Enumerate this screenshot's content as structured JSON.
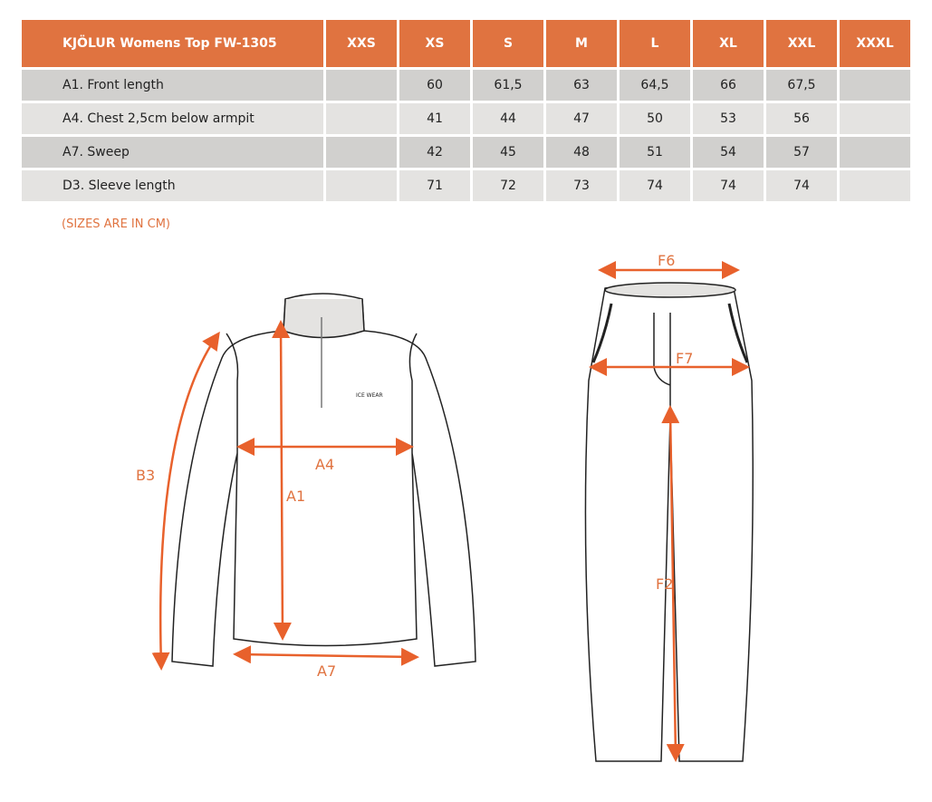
{
  "table": {
    "title": "KJÖLUR Womens Top FW-1305",
    "sizes": [
      "XXS",
      "XS",
      "S",
      "M",
      "L",
      "XL",
      "XXL",
      "XXXL"
    ],
    "rows": [
      {
        "label": "A1. Front length",
        "values": [
          "",
          "60",
          "61,5",
          "63",
          "64,5",
          "66",
          "67,5",
          ""
        ]
      },
      {
        "label": "A4. Chest 2,5cm below armpit",
        "values": [
          "",
          "41",
          "44",
          "47",
          "50",
          "53",
          "56",
          ""
        ]
      },
      {
        "label": "A7. Sweep",
        "values": [
          "",
          "42",
          "45",
          "48",
          "51",
          "54",
          "57",
          ""
        ]
      },
      {
        "label": "D3. Sleeve length",
        "values": [
          "",
          "71",
          "72",
          "73",
          "74",
          "74",
          "74",
          ""
        ]
      }
    ]
  },
  "note": "(SIZES ARE IN CM)",
  "diagram": {
    "top_labels": {
      "b3": "B3",
      "a4": "A4",
      "a1": "A1",
      "a7": "A7"
    },
    "pants_labels": {
      "f6": "F6",
      "f7": "F7",
      "f2": "F2"
    },
    "logo": "ICE WEAR"
  },
  "colors": {
    "accent": "#e07340",
    "row_dark": "#d1d0ce",
    "row_light": "#e4e3e1"
  }
}
